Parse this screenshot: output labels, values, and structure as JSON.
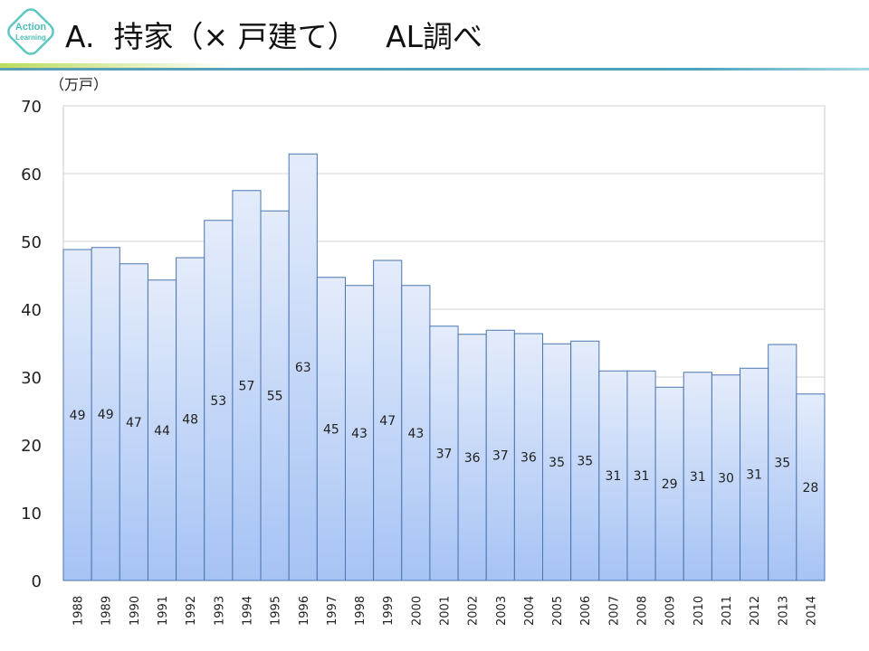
{
  "logo": {
    "line1": "Action",
    "line2": "Learning"
  },
  "title": "A.  持家（× 戸建て）   AL調べ",
  "chart_data": {
    "type": "bar",
    "title": "A. 持家（× 戸建て） AL調べ",
    "ylabel": "（万戸）",
    "xlabel": "",
    "ylim": [
      0,
      70
    ],
    "yticks": [
      0,
      10,
      20,
      30,
      40,
      50,
      60,
      70
    ],
    "grid": true,
    "categories": [
      "1988",
      "1989",
      "1990",
      "1991",
      "1992",
      "1993",
      "1994",
      "1995",
      "1996",
      "1997",
      "1998",
      "1999",
      "2000",
      "2001",
      "2002",
      "2003",
      "2004",
      "2005",
      "2006",
      "2007",
      "2008",
      "2009",
      "2010",
      "2011",
      "2012",
      "2013",
      "2014"
    ],
    "values": [
      48.8,
      49.1,
      46.7,
      44.3,
      47.6,
      53.1,
      57.5,
      54.5,
      62.9,
      44.7,
      43.5,
      47.2,
      43.5,
      37.5,
      36.3,
      36.9,
      36.4,
      34.9,
      35.3,
      30.9,
      30.9,
      28.5,
      30.7,
      30.3,
      31.3,
      34.8,
      27.5
    ],
    "data_labels": [
      "49",
      "49",
      "47",
      "44",
      "48",
      "53",
      "57",
      "55",
      "63",
      "45",
      "43",
      "47",
      "43",
      "37",
      "36",
      "37",
      "36",
      "35",
      "35",
      "31",
      "31",
      "29",
      "31",
      "30",
      "31",
      "35",
      "28"
    ],
    "bar_color_top": "#e4ecfb",
    "bar_color_bottom": "#a6c3f5",
    "bar_edge": "#4a76b0"
  }
}
